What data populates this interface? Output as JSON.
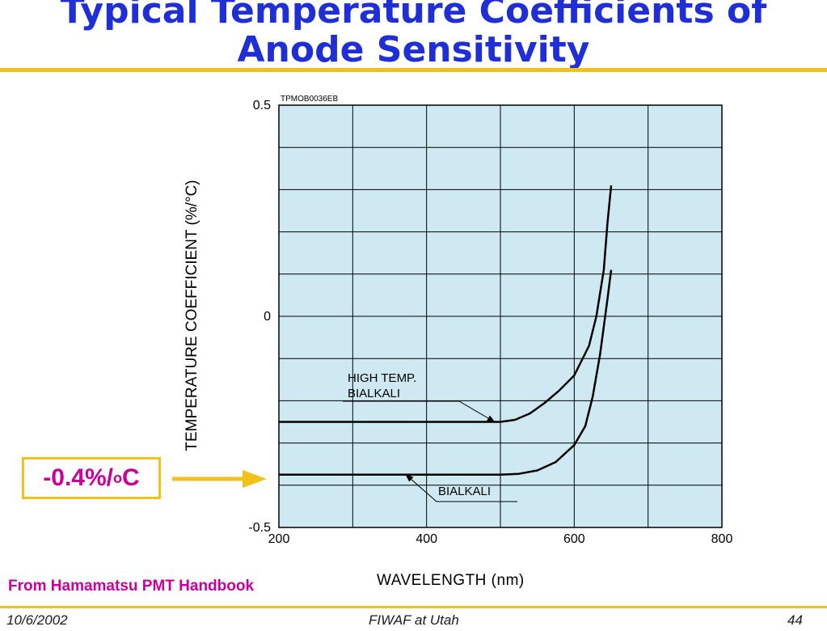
{
  "slide": {
    "title_line1": "Typical Temperature Coefficients of",
    "title_line2": "Anode Sensitivity",
    "source": "From Hamamatsu PMT Handbook",
    "callout": {
      "value": "-0.4%/",
      "degree": "o",
      "unit": "C"
    },
    "footer": {
      "date": "10/6/2002",
      "center": "FIWAF at Utah",
      "page": "44"
    }
  },
  "colors": {
    "title": "#1f2fd8",
    "accent": "#f2c21a",
    "magenta": "#cc0099",
    "plot_bg": "#cfe9f3"
  },
  "chart_data": {
    "type": "line",
    "code": "TPMOB0036EB",
    "xlabel": "WAVELENGTH (nm)",
    "ylabel": "TEMPERATURE COEFFICIENT (%/°C)",
    "xlim": [
      200,
      800
    ],
    "ylim": [
      -0.5,
      0.5
    ],
    "x_ticks": [
      "200",
      "400",
      "600",
      "800"
    ],
    "y_ticks": [
      "0.5",
      "0",
      "-0.5"
    ],
    "grid": true,
    "series": [
      {
        "name": "HIGH TEMP. BIALKALI",
        "x": [
          200,
          300,
          400,
          450,
          500,
          520,
          540,
          560,
          580,
          600,
          620,
          630,
          640,
          645,
          650
        ],
        "y": [
          -0.25,
          -0.25,
          -0.25,
          -0.25,
          -0.25,
          -0.245,
          -0.23,
          -0.205,
          -0.175,
          -0.14,
          -0.07,
          0.0,
          0.11,
          0.22,
          0.31
        ]
      },
      {
        "name": "BIALKALI",
        "x": [
          200,
          300,
          400,
          450,
          500,
          525,
          550,
          575,
          600,
          615,
          625,
          635,
          645,
          650
        ],
        "y": [
          -0.375,
          -0.375,
          -0.375,
          -0.375,
          -0.375,
          -0.373,
          -0.365,
          -0.345,
          -0.305,
          -0.26,
          -0.19,
          -0.09,
          0.04,
          0.11
        ]
      }
    ],
    "annotations": [
      {
        "lines": [
          "HIGH TEMP.",
          "BIALKALI"
        ],
        "points_to": [
          492,
          -0.25
        ]
      },
      {
        "lines": [
          "BIALKALI"
        ],
        "points_to": [
          372,
          -0.375
        ]
      }
    ]
  }
}
